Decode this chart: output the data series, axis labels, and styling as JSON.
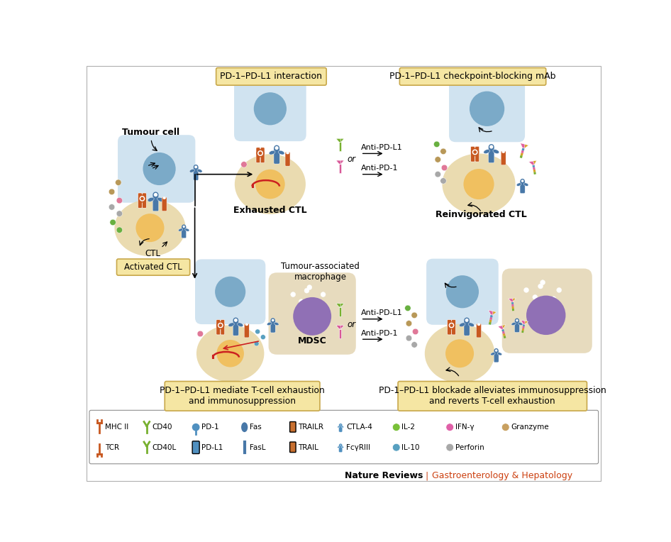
{
  "bg_color": "#ffffff",
  "box_bg": "#f5e6a3",
  "box_border": "#c8a84b",
  "cell_blue_outer": "#b8d4e8",
  "cell_blue_inner": "#7baac8",
  "cell_yellow": "#f0c060",
  "cell_beige": "#e8d8a8",
  "cell_purple": "#9070b5",
  "cell_macro_bg": "#e0cfa8",
  "orange_recep": "#c85820",
  "blue_recep": "#4878a8",
  "green_ab": "#78b030",
  "pink_ab": "#d85898",
  "yellow_ab": "#c89030",
  "red_signal": "#cc2020",
  "dot_granzyme": "#b89858",
  "dot_pink": "#e07898",
  "dot_grey": "#a8a8a8",
  "dot_green": "#68b040",
  "dot_blue": "#58a0c0",
  "journal_color": "#cc4010",
  "labels": {
    "top_left_box": "PD-1–PD-L1 interaction",
    "top_right_box": "PD-1–PD-L1 checkpoint-blocking mAb",
    "bot_left_box": "PD-1–PD-L1 mediate T-cell exhaustion\nand immunosuppression",
    "bot_right_box": "PD-1–PD-L1 blockade alleviates immunosuppression\nand reverts T-cell exhaustion",
    "tumour_cell": "Tumour cell",
    "ctl": "CTL",
    "activated_ctl": "Activated CTL",
    "exhausted_ctl": "Exhausted CTL",
    "reinvigorated_ctl": "Reinvigorated CTL",
    "mdsc": "MDSC",
    "tumour_macro": "Tumour-associated\nmacrophage",
    "anti_pdl1": "Anti-PD-L1",
    "anti_pd1": "Anti-PD-1",
    "or": "or"
  },
  "legend_row1_labels": [
    "MHC II",
    "CD40",
    "PD-1",
    "Fas",
    "TRAILR",
    "CTLA-4",
    "IL-2",
    "IFN-γ",
    "Granzyme"
  ],
  "legend_row2_labels": [
    "TCR",
    "CD40L",
    "PD-L1",
    "FasL",
    "TRAIL",
    "FcγRIII",
    "IL-10",
    "Perforin"
  ],
  "leg_r1_colors": [
    "#c85820",
    "#78b030",
    "#5090c0",
    "#4878a8",
    "#c87030",
    "#5090c0",
    "#78c038",
    "#e060a8",
    "#c8a060"
  ],
  "leg_r2_colors": [
    "#c85820",
    "#78b030",
    "#5090c0",
    "#4878a8",
    "#c87030",
    "#5090c0",
    "#58a0c0",
    "#a8a8a8"
  ],
  "journal_text": "Nature Reviews",
  "journal_sub": "Gastroenterology & Hepatology"
}
